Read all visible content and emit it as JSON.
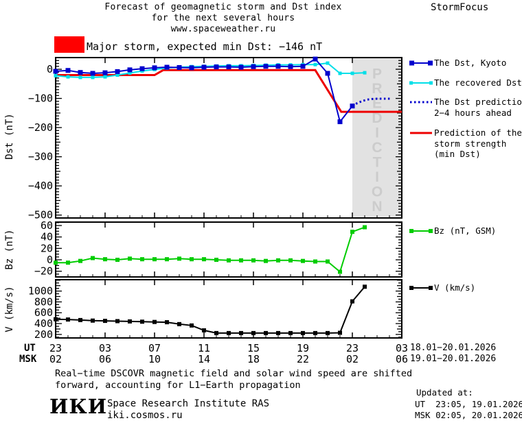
{
  "header": {
    "title_line1": "Forecast of geomagnetic storm and Dst index",
    "title_line2": "for the next several hours",
    "title_line3": "www.spaceweather.ru",
    "brand": "StormFocus",
    "alert_label": "Major storm, expected min Dst: −146 nT"
  },
  "colors": {
    "kyoto": "#0000cd",
    "recovered": "#00dfe8",
    "prediction": "#0000cd",
    "storm": "#ee0000",
    "bz": "#00cc00",
    "v": "#000000",
    "band": "#e2e2e2",
    "band_text": "#cccccc",
    "alert": "#ff0000"
  },
  "legend": {
    "dst_kyoto": "The Dst, Kyoto",
    "recovered": "The recovered Dst",
    "prediction_line1": "The Dst prediction",
    "prediction_line2": "2−4 hours ahead",
    "storm_line1": "Prediction of the",
    "storm_line2": "storm strength",
    "storm_line3": "(min Dst)",
    "bz": "Bz (nT, GSM)",
    "v": "V (km/s)"
  },
  "xaxis": {
    "ut_label": "UT",
    "msk_label": "MSK",
    "ut_ticks": [
      "23",
      "03",
      "07",
      "11",
      "15",
      "19",
      "23",
      "03"
    ],
    "msk_ticks": [
      "02",
      "06",
      "10",
      "14",
      "18",
      "22",
      "02",
      "06"
    ],
    "tick_hours": [
      0,
      4,
      8,
      12,
      16,
      20,
      24,
      28
    ],
    "ut_dates": "18.01−20.01.2026",
    "msk_dates": "19.01−20.01.2026"
  },
  "chart_data": [
    {
      "type": "line",
      "name": "dst",
      "ylabel": "Dst (nT)",
      "ylim": [
        -510,
        40
      ],
      "yticks": [
        0,
        -100,
        -200,
        -300,
        -400,
        -500
      ],
      "xlim": [
        0,
        28
      ],
      "x_start": "18.01.2026 23:00 UT",
      "grid": false,
      "prediction_band": [
        24,
        28
      ],
      "prediction_band_label": "PREDICTION",
      "series": [
        {
          "name": "Prediction of the storm strength (min Dst)",
          "color": "#ee0000",
          "marker": "none",
          "width": 3,
          "x": [
            0,
            8,
            8.7,
            21,
            23.1,
            28
          ],
          "values": [
            -20,
            -20,
            -3,
            -3,
            -146,
            -146
          ]
        },
        {
          "name": "The recovered Dst",
          "color": "#00dfe8",
          "marker": "square",
          "marker_size": 5,
          "width": 2,
          "x": [
            0,
            1,
            2,
            3,
            4,
            5,
            6,
            7,
            8,
            9,
            10,
            11,
            12,
            13,
            14,
            15,
            16,
            17,
            18,
            19,
            20,
            21,
            22,
            23,
            24,
            25
          ],
          "values": [
            -22,
            -26,
            -28,
            -28,
            -26,
            -20,
            -13,
            -6,
            -1,
            4,
            7,
            9,
            10,
            11,
            12,
            12,
            13,
            14,
            15,
            15,
            16,
            16,
            21,
            -14,
            -14,
            -12
          ]
        },
        {
          "name": "The Dst, Kyoto",
          "color": "#0000cd",
          "marker": "square",
          "marker_size": 7,
          "width": 2,
          "x": [
            0,
            1,
            2,
            3,
            4,
            5,
            6,
            7,
            8,
            9,
            10,
            11,
            12,
            13,
            14,
            15,
            16,
            17,
            18,
            19,
            20,
            21,
            22,
            23,
            24
          ],
          "values": [
            -7,
            -4,
            -11,
            -14,
            -12,
            -8,
            -2,
            2,
            5,
            7,
            6,
            5,
            7,
            8,
            8,
            7,
            9,
            10,
            10,
            9,
            10,
            35,
            -14,
            -180,
            -126
          ]
        },
        {
          "name": "The Dst prediction 2−4 hours ahead",
          "color": "#0000cd",
          "marker": "none",
          "style": "dotted",
          "width": 3,
          "x": [
            24,
            24.4,
            24.8,
            25.2,
            25.6,
            26,
            26.4,
            26.8,
            27.2
          ],
          "values": [
            -126,
            -116,
            -109,
            -104,
            -102,
            -101,
            -101,
            -101,
            -101
          ]
        }
      ]
    },
    {
      "type": "line",
      "name": "bz",
      "ylabel": "Bz (nT)",
      "ylim": [
        -30,
        66
      ],
      "yticks": [
        60,
        40,
        20,
        0,
        -20
      ],
      "xlim": [
        0,
        28
      ],
      "grid": false,
      "series": [
        {
          "name": "Bz (nT, GSM)",
          "color": "#00cc00",
          "marker": "square",
          "marker_size": 6,
          "width": 2,
          "x": [
            0,
            1,
            2,
            3,
            4,
            5,
            6,
            7,
            8,
            9,
            10,
            11,
            12,
            13,
            14,
            15,
            16,
            17,
            18,
            19,
            20,
            21,
            22,
            23,
            24,
            25
          ],
          "values": [
            -5,
            -5,
            -2,
            3,
            1,
            0,
            2,
            1,
            1,
            1,
            2,
            1,
            1,
            0,
            -1,
            -1,
            -1,
            -2,
            -1,
            -1,
            -2,
            -3,
            -3,
            -21,
            49,
            57
          ]
        }
      ]
    },
    {
      "type": "line",
      "name": "v",
      "ylabel": "V (km/s)",
      "ylim": [
        135,
        1210
      ],
      "yticks": [
        1000,
        800,
        600,
        400,
        200
      ],
      "xlim": [
        0,
        28
      ],
      "grid": false,
      "series": [
        {
          "name": "V (km/s)",
          "color": "#000000",
          "marker": "square",
          "marker_size": 6,
          "width": 2,
          "x": [
            0,
            1,
            2,
            3,
            4,
            5,
            6,
            7,
            8,
            9,
            10,
            11,
            12,
            13,
            14,
            15,
            16,
            17,
            18,
            19,
            20,
            21,
            22,
            23,
            24,
            25
          ],
          "values": [
            480,
            475,
            465,
            455,
            450,
            445,
            440,
            435,
            430,
            425,
            390,
            365,
            275,
            225,
            225,
            225,
            225,
            225,
            225,
            225,
            225,
            225,
            225,
            230,
            810,
            1080
          ]
        }
      ]
    }
  ],
  "footer": {
    "note_line1": "Real−time DSCOVR magnetic field and solar wind speed are shifted",
    "note_line2": "forward, accounting for L1−Earth propagation",
    "logo": "ИКИ",
    "institute": "Space Research Institute RAS",
    "site": "iki.cosmos.ru",
    "updated_label": "Updated at:",
    "updated_ut": "UT  23:05, 19.01.2026",
    "updated_msk": "MSK 02:05, 20.01.2026"
  }
}
